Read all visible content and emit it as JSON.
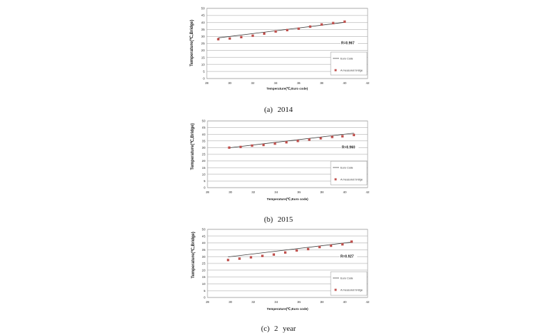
{
  "chart_data": [
    {
      "type": "scatter",
      "caption": "(a) 2014",
      "xlabel": "Temperature(℃,Euro code)",
      "ylabel": "Temperature(℃,Bridge)",
      "xlim": [
        28,
        42
      ],
      "ylim": [
        0,
        50
      ],
      "xticks": [
        28,
        30,
        32,
        34,
        36,
        38,
        40,
        42
      ],
      "yticks": [
        0,
        5,
        10,
        15,
        20,
        25,
        30,
        35,
        40,
        45,
        50
      ],
      "grid": "horizontal",
      "legend_position": "bottom-right",
      "annotation": "R=0.967",
      "series": [
        {
          "name": "Euro Code",
          "style": "line",
          "color": "#3a3a3a",
          "x": [
            29,
            40
          ],
          "y": [
            29,
            40
          ]
        },
        {
          "name": "A measured bridge",
          "style": "marker",
          "color": "#c0504d",
          "x": [
            29,
            30,
            31,
            32,
            33,
            34,
            35,
            36,
            37,
            38,
            39,
            40
          ],
          "y": [
            28.0,
            28.5,
            29.5,
            30.5,
            32.0,
            33.5,
            34.5,
            35.5,
            37.0,
            38.5,
            39.5,
            40.5
          ]
        }
      ]
    },
    {
      "type": "scatter",
      "caption": "(b) 2015",
      "xlabel": "Temperature(℃,Euro code)",
      "ylabel": "Temperature(℃,Bridge)",
      "xlim": [
        28,
        42
      ],
      "ylim": [
        0,
        50
      ],
      "xticks": [
        28,
        30,
        32,
        34,
        36,
        38,
        40,
        42
      ],
      "yticks": [
        0,
        5,
        10,
        15,
        20,
        25,
        30,
        35,
        40,
        45,
        50
      ],
      "grid": "horizontal",
      "legend_position": "bottom-right",
      "annotation": "R=0.960",
      "series": [
        {
          "name": "Euro Code",
          "style": "line",
          "color": "#3a3a3a",
          "x": [
            29.9,
            40.8
          ],
          "y": [
            29.9,
            40.8
          ]
        },
        {
          "name": "A measured bridge",
          "style": "marker",
          "color": "#c0504d",
          "x": [
            29.9,
            30.9,
            31.9,
            32.9,
            33.9,
            34.9,
            35.9,
            36.9,
            37.9,
            38.9,
            39.8,
            40.8
          ],
          "y": [
            30.0,
            30.5,
            31.5,
            32.0,
            33.0,
            34.0,
            35.0,
            36.0,
            37.0,
            38.0,
            38.5,
            39.5
          ]
        }
      ]
    },
    {
      "type": "scatter",
      "caption": "(c) 2 year",
      "xlabel": "Temperature(℃,Euro code)",
      "ylabel": "Temperature(℃,Bridge)",
      "xlim": [
        28,
        42
      ],
      "ylim": [
        0,
        50
      ],
      "xticks": [
        28,
        30,
        32,
        34,
        36,
        38,
        40,
        42
      ],
      "yticks": [
        0,
        5,
        10,
        15,
        20,
        25,
        30,
        35,
        40,
        45,
        50
      ],
      "grid": "horizontal",
      "legend_position": "bottom-right",
      "annotation": "R=0.927",
      "series": [
        {
          "name": "Euro Code",
          "style": "line",
          "color": "#3a3a3a",
          "x": [
            29.8,
            40.6
          ],
          "y": [
            29.8,
            40.6
          ]
        },
        {
          "name": "A measured bridge",
          "style": "marker",
          "color": "#c0504d",
          "x": [
            29.8,
            30.8,
            31.8,
            32.8,
            33.8,
            34.8,
            35.8,
            36.8,
            37.8,
            38.8,
            39.8,
            40.6
          ],
          "y": [
            27.5,
            28.5,
            29.5,
            30.5,
            31.5,
            33.0,
            34.5,
            35.5,
            37.0,
            38.0,
            39.0,
            41.0
          ]
        }
      ]
    }
  ]
}
